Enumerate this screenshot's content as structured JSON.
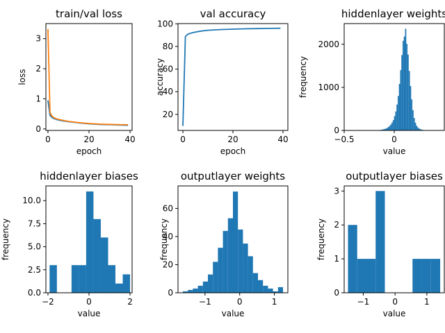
{
  "colors": {
    "blue": "#1f77b4",
    "orange": "#ff7f0e"
  },
  "chart_data": [
    {
      "type": "line",
      "title": "train/val loss",
      "xlabel": "epoch",
      "ylabel": "loss",
      "xlim": [
        -1,
        41
      ],
      "ylim": [
        -0.05,
        3.5
      ],
      "xticks": [
        0,
        20,
        40
      ],
      "yticks": [
        0,
        1,
        2,
        3
      ],
      "series": [
        {
          "color": "#1f77b4",
          "x": [
            0,
            1,
            2,
            3,
            4,
            5,
            7,
            10,
            15,
            20,
            25,
            30,
            35,
            39
          ],
          "y": [
            0.95,
            0.45,
            0.38,
            0.34,
            0.32,
            0.3,
            0.27,
            0.24,
            0.2,
            0.17,
            0.15,
            0.14,
            0.13,
            0.12
          ]
        },
        {
          "color": "#ff7f0e",
          "x": [
            0,
            1,
            2,
            3,
            4,
            5,
            7,
            10,
            15,
            20,
            25,
            30,
            35,
            39
          ],
          "y": [
            3.32,
            0.55,
            0.42,
            0.37,
            0.34,
            0.32,
            0.29,
            0.25,
            0.21,
            0.18,
            0.16,
            0.15,
            0.14,
            0.14
          ]
        }
      ]
    },
    {
      "type": "line",
      "title": "val accuracy",
      "xlabel": "epoch",
      "ylabel": "accuracy",
      "xlim": [
        -1.95,
        41.95
      ],
      "ylim": [
        5.8,
        100.2
      ],
      "xticks": [
        0,
        20,
        40
      ],
      "yticks": [
        20,
        40,
        60,
        80,
        100
      ],
      "series": [
        {
          "color": "#1f77b4",
          "x": [
            0,
            1,
            2,
            3,
            4,
            5,
            7,
            10,
            15,
            20,
            25,
            30,
            35,
            39
          ],
          "y": [
            9.8,
            88.8,
            90.8,
            91.6,
            92.2,
            92.7,
            93.5,
            94.3,
            94.9,
            95.3,
            95.6,
            95.8,
            96.0,
            96.1
          ]
        }
      ]
    },
    {
      "type": "bar",
      "title": "hiddenlayer weights",
      "xlabel": "value",
      "ylabel": "frequency",
      "xlim": [
        -0.5,
        0.5
      ],
      "ylim": [
        0,
        2480
      ],
      "xticks": [
        -0.5,
        0.0
      ],
      "yticks": [
        0,
        1000,
        2000
      ],
      "bin_range": [
        -0.21,
        0.34
      ],
      "values": [
        2,
        3,
        4,
        5,
        8,
        10,
        14,
        20,
        26,
        35,
        45,
        60,
        80,
        105,
        140,
        185,
        240,
        330,
        440,
        600,
        800,
        1080,
        1400,
        1750,
        2080,
        2180,
        2360,
        2010,
        1760,
        1380,
        1030,
        720,
        470,
        290,
        180,
        110,
        70,
        45,
        30,
        20,
        13,
        8,
        5,
        3,
        2
      ]
    },
    {
      "type": "bar",
      "title": "hiddenlayer biases",
      "xlabel": "value",
      "ylabel": "frequency",
      "xlim": [
        -2.1,
        2.1
      ],
      "ylim": [
        0,
        11.6
      ],
      "xticks": [
        -2,
        0,
        2
      ],
      "yticks": [
        0.0,
        2.5,
        5.0,
        7.5,
        10.0
      ],
      "tick_labels": [
        "0.0",
        "2.5",
        "5.0",
        "7.5",
        "10.0"
      ],
      "bin_range": [
        -1.92,
        2.0
      ],
      "values": [
        3,
        0,
        0,
        3,
        3,
        11,
        8,
        6,
        3,
        1,
        2
      ]
    },
    {
      "type": "bar",
      "title": "outputlayer weights",
      "xlabel": "value",
      "ylabel": "frequency",
      "xlim": [
        -1.78,
        1.39
      ],
      "ylim": [
        0,
        76
      ],
      "xticks": [
        -1,
        0,
        1
      ],
      "yticks": [
        0,
        20,
        40,
        60
      ],
      "bin_range": [
        -1.64,
        1.25
      ],
      "values": [
        1,
        2,
        3,
        5,
        8,
        13,
        22,
        32,
        44,
        53,
        72,
        45,
        35,
        26,
        14,
        9,
        5,
        3,
        1,
        4
      ]
    },
    {
      "type": "bar",
      "title": "outputlayer biases",
      "xlabel": "value",
      "ylabel": "frequency",
      "xlim": [
        -1.6,
        1.55
      ],
      "ylim": [
        0,
        3.15
      ],
      "xticks": [
        -1,
        0,
        1
      ],
      "yticks": [
        0,
        1,
        2,
        3
      ],
      "bin_range": [
        -1.48,
        1.42
      ],
      "values": [
        2,
        1,
        1,
        3,
        0,
        0,
        0,
        1,
        1,
        1
      ]
    }
  ]
}
